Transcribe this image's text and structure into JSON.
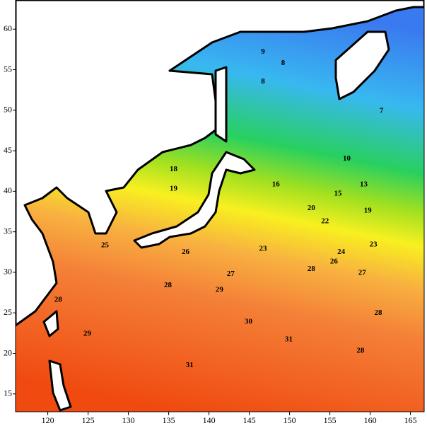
{
  "chart_data": {
    "type": "contour",
    "xlim": [
      116,
      166.7
    ],
    "ylim": [
      12.8,
      63.6
    ],
    "xticks": [
      120,
      125,
      130,
      135,
      140,
      145,
      150,
      155,
      160,
      165
    ],
    "yticks": [
      15,
      20,
      25,
      30,
      35,
      40,
      45,
      50,
      55,
      60
    ],
    "contour_labels": {
      "x": [
        161.4,
        146.7,
        149.2,
        146.7,
        157.1,
        159.2,
        156.0,
        148.3,
        135.6,
        135.6,
        159.7,
        152.7,
        154.4,
        146.7,
        160.4,
        156.4,
        137.1,
        155.5,
        142.7,
        159.0,
        134.9,
        152.7,
        161.0,
        158.8,
        121.3,
        141.3,
        124.9,
        144.9,
        149.9,
        137.6,
        127.1
      ],
      "y": [
        49.9,
        53.5,
        55.8,
        57.2,
        44.0,
        40.8,
        39.7,
        40.8,
        42.7,
        40.3,
        37.6,
        37.9,
        36.3,
        32.9,
        33.4,
        32.5,
        32.5,
        31.3,
        29.8,
        29.9,
        28.4,
        30.4,
        25.0,
        20.3,
        26.6,
        27.8,
        22.4,
        23.9,
        21.7,
        18.5,
        33.3
      ],
      "values": [
        7,
        8,
        8,
        9,
        10,
        13,
        15,
        16,
        18,
        19,
        19,
        20,
        22,
        23,
        23,
        24,
        26,
        26,
        27,
        27,
        28,
        28,
        28,
        28,
        28,
        29,
        29,
        30,
        31,
        31,
        25
      ]
    }
  }
}
